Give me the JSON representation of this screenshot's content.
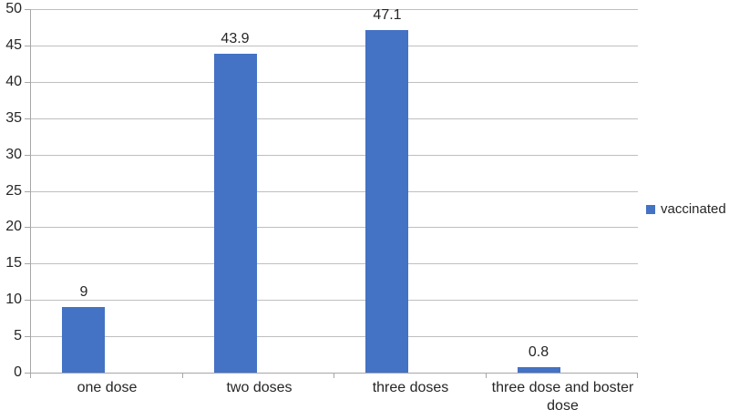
{
  "chart_data": {
    "type": "bar",
    "title": "",
    "xlabel": "",
    "ylabel": "",
    "categories": [
      "one dose",
      "two doses",
      "three doses",
      "three dose and boster dose"
    ],
    "series": [
      {
        "name": "vaccinated",
        "values": [
          9,
          43.9,
          47.1,
          0.8
        ]
      }
    ],
    "data_labels": [
      "9",
      "43.9",
      "47.1",
      "0.8"
    ],
    "ylim": [
      0,
      50
    ],
    "ytick_step": 5,
    "ytick_labels": [
      "0",
      "5",
      "10",
      "15",
      "20",
      "25",
      "30",
      "35",
      "40",
      "45",
      "50"
    ],
    "grid": true,
    "legend_position": "right",
    "colors": {
      "bar": "#4472C4",
      "gridline": "#BFBFBF",
      "axis": "#A6A6A6",
      "text": "#262626"
    }
  },
  "legend": {
    "label": "vaccinated"
  }
}
